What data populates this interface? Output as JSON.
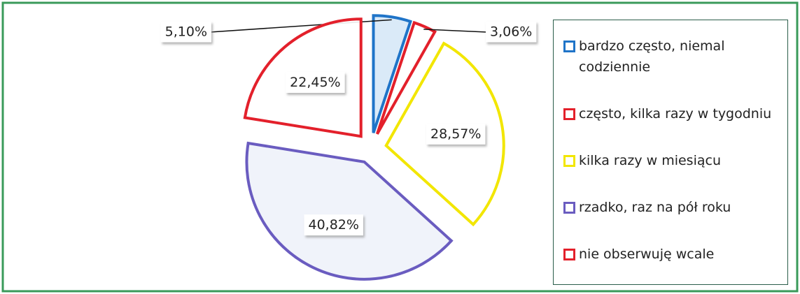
{
  "chart_data": {
    "type": "pie",
    "categories": [
      "bardzo często, niemal codziennie",
      "często, kilka razy w tygodniu",
      "kilka razy w miesiącu",
      "rzadko, raz na pół roku",
      "nie obserwuję wcale"
    ],
    "values": [
      5.1,
      3.06,
      28.57,
      40.82,
      22.45
    ],
    "value_labels": [
      "5,10%",
      "3,06%",
      "28,57%",
      "40,82%",
      "22,45%"
    ],
    "colors": [
      "#1f74c8",
      "#e3202b",
      "#f2e600",
      "#6a5cc0",
      "#e3202b"
    ],
    "legend": "right"
  }
}
